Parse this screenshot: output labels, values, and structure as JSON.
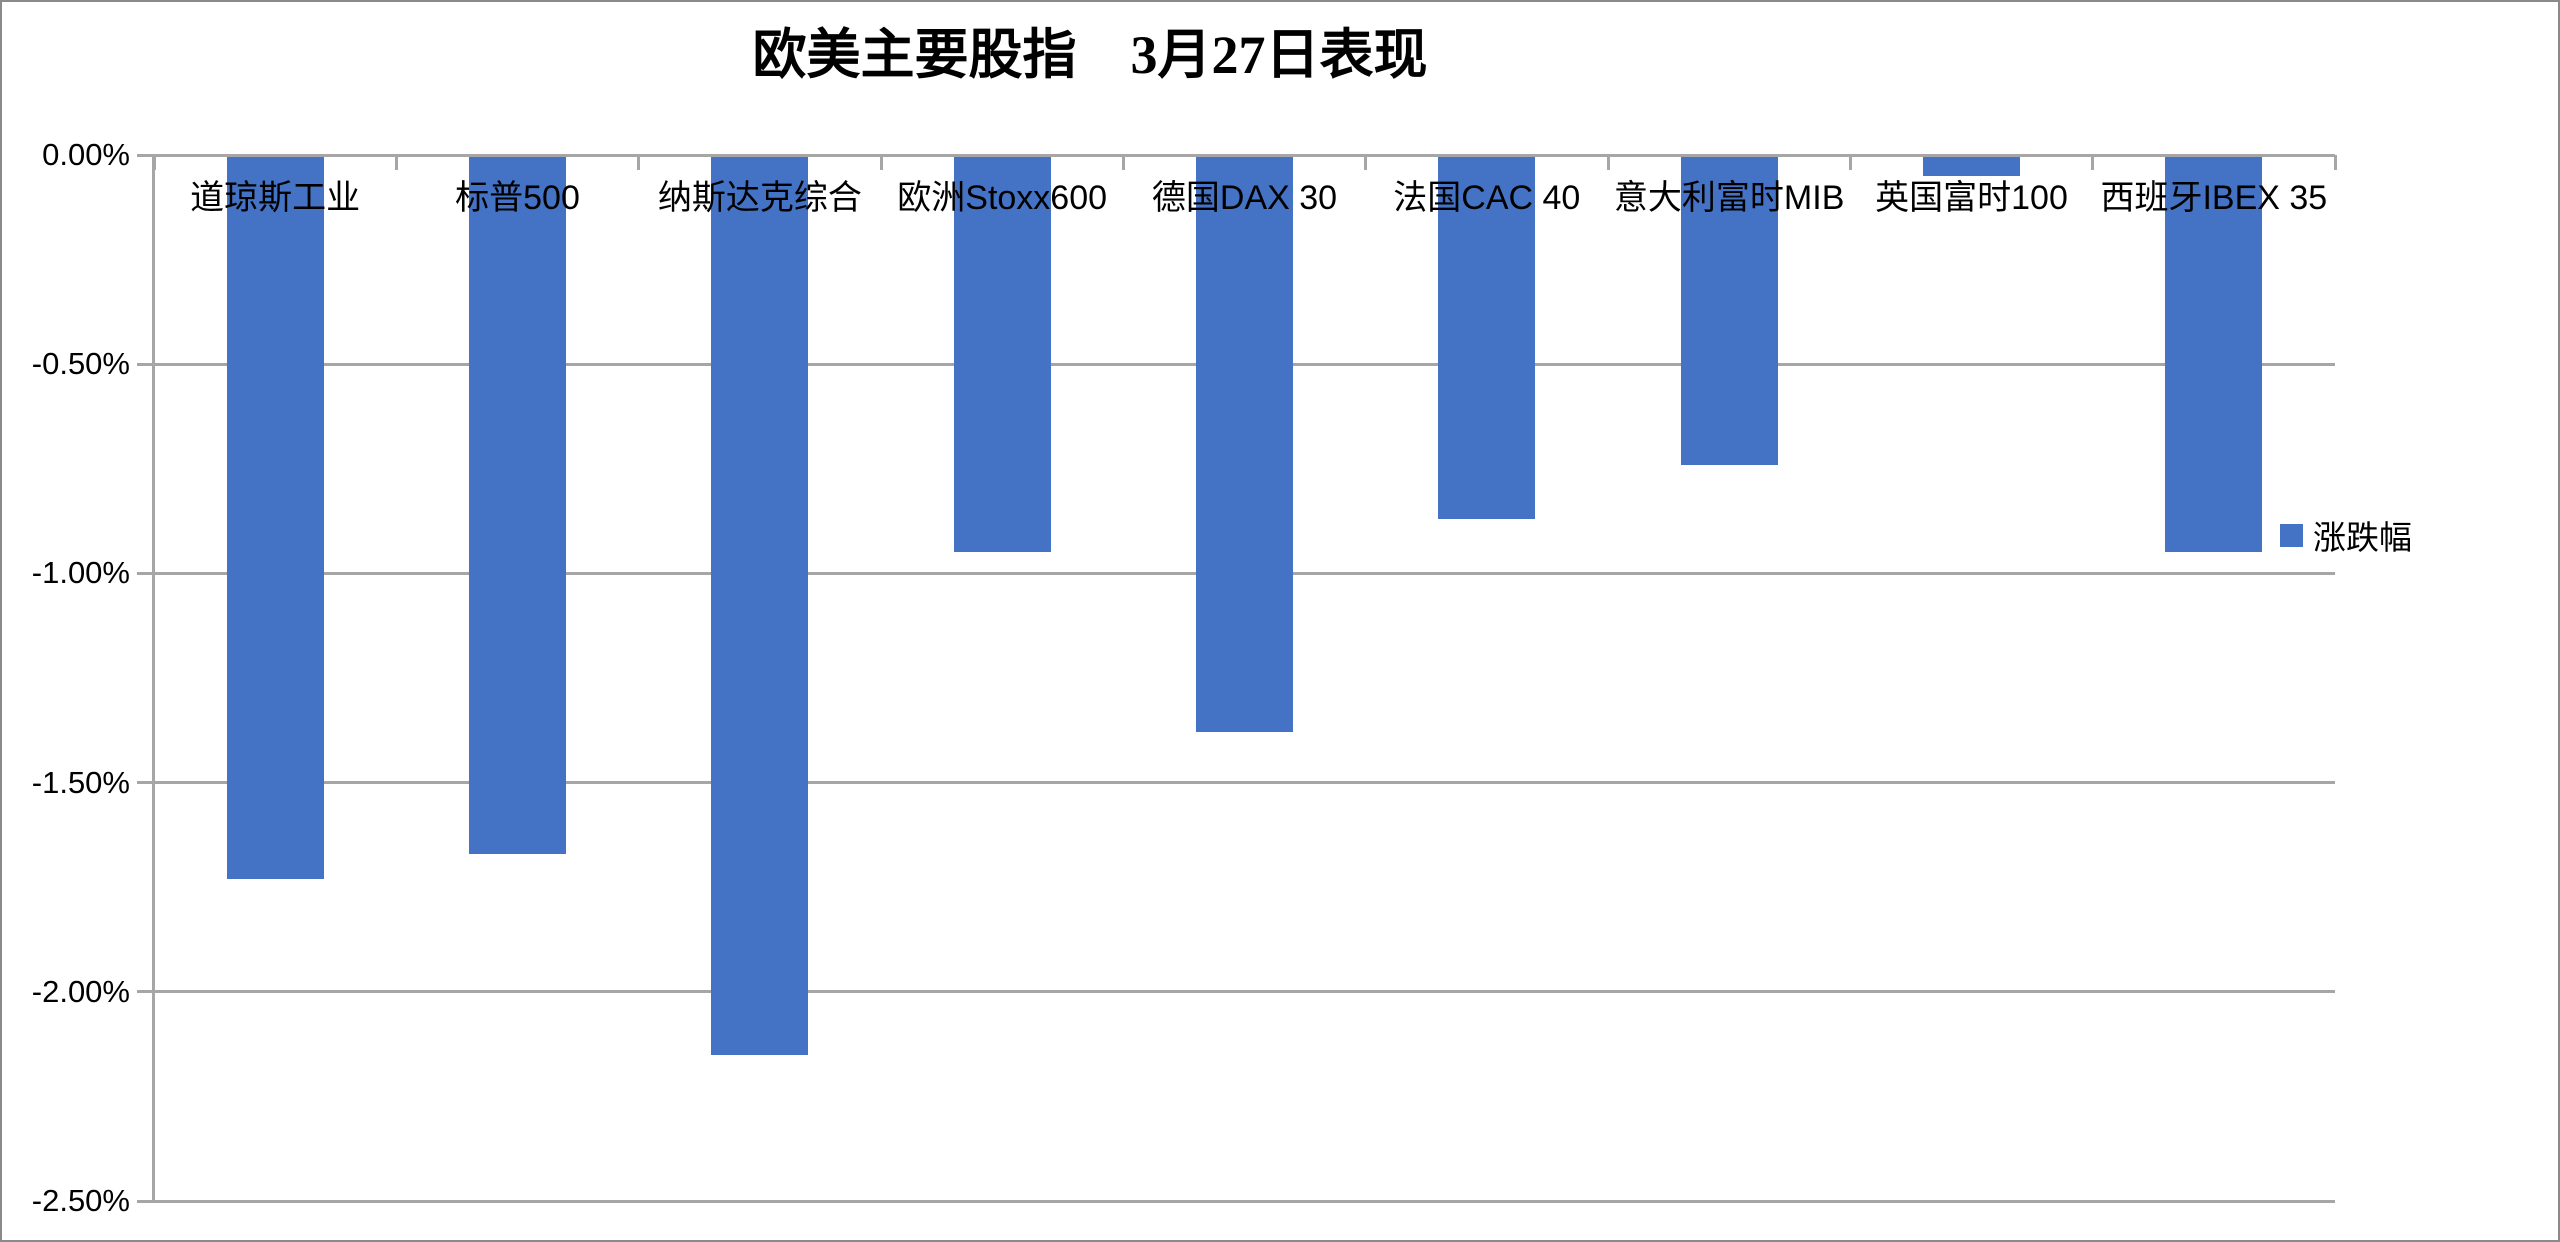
{
  "chart_data": {
    "type": "bar",
    "title": "欧美主要股指　3月27日表现",
    "categories": [
      "道琼斯工业",
      "标普500",
      "纳斯达克综合",
      "欧洲Stoxx600",
      "德国DAX 30",
      "法国CAC 40",
      "意大利富时MIB",
      "英国富时100",
      "西班牙IBEX 35"
    ],
    "series": [
      {
        "name": "涨跌幅",
        "values": [
          -1.73,
          -1.67,
          -2.15,
          -0.95,
          -1.38,
          -0.87,
          -0.74,
          -0.05,
          -0.95
        ]
      }
    ],
    "value_unit": "%",
    "ylim": [
      -2.5,
      0
    ],
    "yticks": [
      0,
      -0.5,
      -1,
      -1.5,
      -2,
      -2.5
    ],
    "ytick_labels": [
      "0.00%",
      "-0.50%",
      "-1.00%",
      "-1.50%",
      "-2.00%",
      "-2.50%"
    ],
    "grid": true,
    "legend_position": "right",
    "xlabel": "",
    "ylabel": ""
  },
  "colors": {
    "bar": "#4472C4",
    "gridline": "#A6A6A6",
    "axis": "#A6A6A6",
    "border": "#8A8A8A",
    "text": "#000000"
  }
}
